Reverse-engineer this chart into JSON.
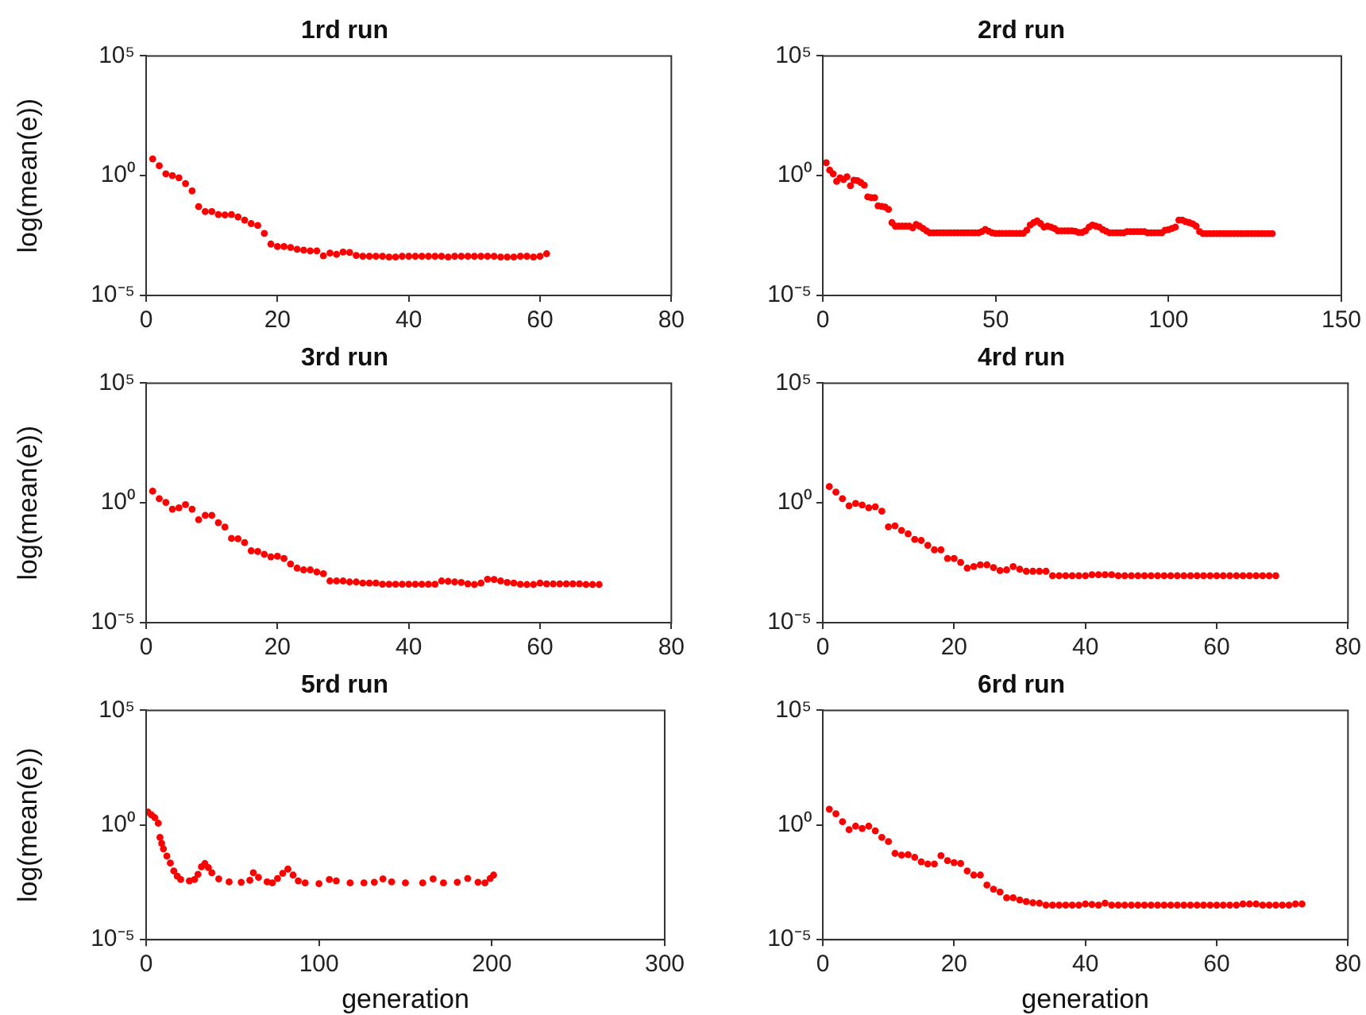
{
  "chart_data": [
    {
      "type": "scatter",
      "title": "1rd run",
      "ylabel": "log(mean(e))",
      "color": "#ff0000",
      "marker": "circle",
      "log": "y",
      "xlim": [
        0,
        80
      ],
      "xticks": [
        0,
        20,
        40,
        60,
        80
      ],
      "ylim": [
        1e-05,
        100000
      ],
      "yticks": [
        {
          "value": 1e-05,
          "label": "10⁻⁵"
        },
        {
          "value": 1,
          "label": "10⁰"
        },
        {
          "value": 100000,
          "label": "10⁵"
        }
      ],
      "x": [
        1,
        2,
        3,
        4,
        5,
        6,
        7,
        8,
        9,
        10,
        11,
        12,
        13,
        14,
        15,
        16,
        17,
        18,
        19,
        20,
        21,
        22,
        23,
        24,
        25,
        26,
        27,
        28,
        29,
        30,
        31,
        32,
        33,
        34,
        35,
        36,
        37,
        38,
        39,
        40,
        41,
        42,
        43,
        44,
        45,
        46,
        47,
        48,
        49,
        50,
        51,
        52,
        53,
        54,
        55,
        56,
        57,
        58,
        59,
        60,
        61
      ],
      "values": [
        5.0,
        2.6,
        1.2,
        1.0,
        0.81,
        0.47,
        0.23,
        0.051,
        0.032,
        0.032,
        0.024,
        0.023,
        0.024,
        0.019,
        0.014,
        0.01,
        0.0083,
        0.0039,
        0.0014,
        0.0011,
        0.0011,
        0.001,
        0.00085,
        0.00078,
        0.00072,
        0.00072,
        0.00045,
        0.00059,
        0.00052,
        0.00065,
        0.00062,
        0.00047,
        0.00043,
        0.00043,
        0.00043,
        0.00043,
        0.0004,
        0.0004,
        0.00043,
        0.00043,
        0.00043,
        0.00043,
        0.00043,
        0.00043,
        0.00043,
        0.0004,
        0.00043,
        0.00043,
        0.00043,
        0.00043,
        0.00043,
        0.00043,
        0.00043,
        0.0004,
        0.0004,
        0.0004,
        0.00043,
        0.00043,
        0.0004,
        0.00043,
        0.00055
      ]
    },
    {
      "type": "scatter",
      "title": "2rd run",
      "color": "#ff0000",
      "marker": "circle",
      "log": "y",
      "xlim": [
        0,
        150
      ],
      "xticks": [
        0,
        50,
        100,
        150
      ],
      "ylim": [
        1e-05,
        100000
      ],
      "yticks": [
        {
          "value": 1e-05,
          "label": "10⁻⁵"
        },
        {
          "value": 1,
          "label": "10⁰"
        },
        {
          "value": 100000,
          "label": "10⁵"
        }
      ],
      "x": [
        1,
        2,
        3,
        4,
        5,
        6,
        7,
        8,
        9,
        10,
        11,
        12,
        13,
        14,
        15,
        16,
        17,
        18,
        19,
        20,
        21,
        22,
        23,
        24,
        25,
        26,
        27,
        28,
        29,
        30,
        31,
        32,
        33,
        34,
        35,
        36,
        37,
        38,
        39,
        40,
        41,
        42,
        43,
        44,
        45,
        46,
        47,
        48,
        49,
        50,
        51,
        52,
        53,
        54,
        55,
        56,
        57,
        58,
        59,
        60,
        61,
        62,
        63,
        64,
        65,
        66,
        67,
        68,
        69,
        70,
        71,
        72,
        73,
        74,
        75,
        76,
        77,
        78,
        79,
        80,
        81,
        82,
        83,
        84,
        85,
        86,
        87,
        88,
        89,
        90,
        91,
        92,
        93,
        94,
        95,
        96,
        97,
        98,
        99,
        100,
        101,
        102,
        103,
        104,
        105,
        106,
        107,
        108,
        109,
        110,
        111,
        112,
        113,
        114,
        115,
        116,
        117,
        118,
        119,
        120,
        121,
        122,
        123,
        124,
        125,
        126,
        127,
        128,
        129,
        130
      ],
      "values": [
        3.5,
        1.7,
        1.2,
        0.58,
        0.81,
        0.69,
        0.9,
        0.38,
        0.65,
        0.62,
        0.52,
        0.4,
        0.13,
        0.12,
        0.12,
        0.055,
        0.052,
        0.049,
        0.039,
        0.011,
        0.0078,
        0.0078,
        0.0078,
        0.0078,
        0.0078,
        0.0066,
        0.0092,
        0.0078,
        0.0063,
        0.005,
        0.0041,
        0.0041,
        0.0041,
        0.0041,
        0.0041,
        0.0041,
        0.0041,
        0.0041,
        0.0041,
        0.0041,
        0.0041,
        0.0041,
        0.0041,
        0.0041,
        0.0041,
        0.0046,
        0.0057,
        0.0048,
        0.0041,
        0.0039,
        0.0039,
        0.0039,
        0.0039,
        0.0039,
        0.0039,
        0.0039,
        0.0039,
        0.0039,
        0.0053,
        0.0087,
        0.011,
        0.013,
        0.01,
        0.0071,
        0.0078,
        0.0071,
        0.0063,
        0.005,
        0.005,
        0.005,
        0.005,
        0.005,
        0.0048,
        0.0043,
        0.0043,
        0.005,
        0.0071,
        0.0087,
        0.0078,
        0.0071,
        0.0056,
        0.0048,
        0.0041,
        0.0041,
        0.0041,
        0.0041,
        0.0041,
        0.0046,
        0.0046,
        0.0046,
        0.0046,
        0.0046,
        0.0046,
        0.0041,
        0.0041,
        0.0041,
        0.0041,
        0.0041,
        0.0053,
        0.0056,
        0.0063,
        0.0071,
        0.014,
        0.014,
        0.012,
        0.011,
        0.0097,
        0.0078,
        0.0046,
        0.0038,
        0.0038,
        0.0038,
        0.0038,
        0.0038,
        0.0038,
        0.0038,
        0.0038,
        0.0038,
        0.0038,
        0.0038,
        0.0038,
        0.0038,
        0.0038,
        0.0038,
        0.0038,
        0.0038,
        0.0038,
        0.0038,
        0.0038,
        0.0038
      ]
    },
    {
      "type": "scatter",
      "title": "3rd run",
      "ylabel": "log(mean(e))",
      "color": "#ff0000",
      "marker": "circle",
      "log": "y",
      "xlim": [
        0,
        80
      ],
      "xticks": [
        0,
        20,
        40,
        60,
        80
      ],
      "ylim": [
        1e-05,
        100000
      ],
      "yticks": [
        {
          "value": 1e-05,
          "label": "10⁻⁵"
        },
        {
          "value": 1,
          "label": "10⁰"
        },
        {
          "value": 100000,
          "label": "10⁵"
        }
      ],
      "x": [
        1,
        2,
        3,
        4,
        5,
        6,
        7,
        8,
        9,
        10,
        11,
        12,
        13,
        14,
        15,
        16,
        17,
        18,
        19,
        20,
        21,
        22,
        23,
        24,
        25,
        26,
        27,
        28,
        29,
        30,
        31,
        32,
        33,
        34,
        35,
        36,
        37,
        38,
        39,
        40,
        41,
        42,
        43,
        44,
        45,
        46,
        47,
        48,
        49,
        50,
        51,
        52,
        53,
        54,
        55,
        56,
        57,
        58,
        59,
        60,
        61,
        62,
        63,
        64,
        65,
        66,
        67,
        68,
        69
      ],
      "values": [
        3.1,
        1.5,
        1.05,
        0.55,
        0.62,
        0.85,
        0.55,
        0.2,
        0.3,
        0.3,
        0.15,
        0.098,
        0.033,
        0.032,
        0.022,
        0.01,
        0.0093,
        0.0071,
        0.0056,
        0.0059,
        0.0048,
        0.0028,
        0.0019,
        0.0016,
        0.0016,
        0.0013,
        0.0011,
        0.00055,
        0.00055,
        0.00055,
        0.0005,
        0.0005,
        0.00045,
        0.00045,
        0.00045,
        0.0004,
        0.0004,
        0.0004,
        0.0004,
        0.0004,
        0.0004,
        0.0004,
        0.0004,
        0.0004,
        0.00055,
        0.00053,
        0.0005,
        0.00048,
        0.00042,
        0.00039,
        0.00045,
        0.00065,
        0.00063,
        0.00055,
        0.00048,
        0.00045,
        0.0004,
        0.00039,
        0.00039,
        0.00045,
        0.00042,
        0.00042,
        0.00042,
        0.00042,
        0.00042,
        0.00042,
        0.00039,
        0.00039,
        0.00039
      ]
    },
    {
      "type": "scatter",
      "title": "4rd run",
      "color": "#ff0000",
      "marker": "circle",
      "log": "y",
      "xlim": [
        0,
        80
      ],
      "xticks": [
        0,
        20,
        40,
        60,
        80
      ],
      "ylim": [
        1e-05,
        100000
      ],
      "yticks": [
        {
          "value": 1e-05,
          "label": "10⁻⁵"
        },
        {
          "value": 1,
          "label": "10⁰"
        },
        {
          "value": 100000,
          "label": "10⁵"
        }
      ],
      "x": [
        1,
        2,
        3,
        4,
        5,
        6,
        7,
        8,
        9,
        10,
        11,
        12,
        13,
        14,
        15,
        16,
        17,
        18,
        19,
        20,
        21,
        22,
        23,
        24,
        25,
        26,
        27,
        28,
        29,
        30,
        31,
        32,
        33,
        34,
        35,
        36,
        37,
        38,
        39,
        40,
        41,
        42,
        43,
        44,
        45,
        46,
        47,
        48,
        49,
        50,
        51,
        52,
        53,
        54,
        55,
        56,
        57,
        58,
        59,
        60,
        61,
        62,
        63,
        64,
        65,
        66,
        67,
        68,
        69
      ],
      "values": [
        4.8,
        2.8,
        1.5,
        0.76,
        0.95,
        0.81,
        0.62,
        0.69,
        0.45,
        0.1,
        0.11,
        0.071,
        0.051,
        0.03,
        0.027,
        0.017,
        0.011,
        0.011,
        0.0048,
        0.0048,
        0.0033,
        0.0019,
        0.0022,
        0.0026,
        0.0026,
        0.002,
        0.0015,
        0.0016,
        0.0022,
        0.0017,
        0.0014,
        0.0014,
        0.0014,
        0.0014,
        0.00091,
        0.00091,
        0.00091,
        0.00091,
        0.00091,
        0.00091,
        0.001,
        0.001,
        0.001,
        0.001,
        0.00091,
        0.00091,
        0.00091,
        0.00091,
        0.00091,
        0.00091,
        0.00091,
        0.00091,
        0.00091,
        0.00091,
        0.00091,
        0.00091,
        0.00091,
        0.00091,
        0.00091,
        0.00091,
        0.00091,
        0.00091,
        0.00091,
        0.00091,
        0.00091,
        0.00091,
        0.00091,
        0.00091,
        0.00091
      ]
    },
    {
      "type": "scatter",
      "title": "5rd run",
      "ylabel": "log(mean(e))",
      "xlabel": "generation",
      "color": "#ff0000",
      "marker": "circle",
      "log": "y",
      "xlim": [
        0,
        300
      ],
      "xticks": [
        0,
        100,
        200,
        300
      ],
      "ylim": [
        1e-05,
        100000
      ],
      "yticks": [
        {
          "value": 1e-05,
          "label": "10⁻⁵"
        },
        {
          "value": 1,
          "label": "10⁰"
        },
        {
          "value": 100000,
          "label": "10⁵"
        }
      ],
      "x": [
        1,
        3,
        5,
        7,
        8,
        9,
        10,
        12,
        14,
        16,
        18,
        20,
        25,
        28,
        30,
        32,
        34,
        36,
        38,
        42,
        48,
        55,
        60,
        62,
        65,
        70,
        73,
        76,
        79,
        82,
        85,
        88,
        92,
        100,
        106,
        110,
        118,
        126,
        132,
        137,
        142,
        150,
        160,
        166,
        172,
        180,
        186,
        192,
        196,
        199,
        201
      ],
      "values": [
        3.7,
        2.8,
        2.1,
        1.2,
        0.29,
        0.16,
        0.091,
        0.044,
        0.022,
        0.01,
        0.0059,
        0.0042,
        0.0037,
        0.0042,
        0.0071,
        0.015,
        0.021,
        0.014,
        0.0083,
        0.0045,
        0.0033,
        0.0032,
        0.0039,
        0.0083,
        0.0052,
        0.0033,
        0.003,
        0.0047,
        0.0078,
        0.012,
        0.0066,
        0.0037,
        0.003,
        0.0028,
        0.0042,
        0.0037,
        0.003,
        0.003,
        0.0032,
        0.0045,
        0.0033,
        0.003,
        0.003,
        0.0045,
        0.003,
        0.0032,
        0.0047,
        0.0032,
        0.003,
        0.0047,
        0.0066
      ]
    },
    {
      "type": "scatter",
      "title": "6rd run",
      "xlabel": "generation",
      "color": "#ff0000",
      "marker": "circle",
      "log": "y",
      "xlim": [
        0,
        80
      ],
      "xticks": [
        0,
        20,
        40,
        60,
        80
      ],
      "ylim": [
        1e-05,
        100000
      ],
      "yticks": [
        {
          "value": 1e-05,
          "label": "10⁻⁵"
        },
        {
          "value": 1,
          "label": "10⁰"
        },
        {
          "value": 100000,
          "label": "10⁵"
        }
      ],
      "x": [
        1,
        2,
        3,
        4,
        5,
        6,
        7,
        8,
        9,
        10,
        11,
        12,
        13,
        14,
        15,
        16,
        17,
        18,
        19,
        20,
        21,
        22,
        23,
        24,
        25,
        26,
        27,
        28,
        29,
        30,
        31,
        32,
        33,
        34,
        35,
        36,
        37,
        38,
        39,
        40,
        41,
        42,
        43,
        44,
        45,
        46,
        47,
        48,
        49,
        50,
        51,
        52,
        53,
        54,
        55,
        56,
        57,
        58,
        59,
        60,
        61,
        62,
        63,
        64,
        65,
        66,
        67,
        68,
        69,
        70,
        71,
        72,
        73
      ],
      "values": [
        4.9,
        3.1,
        1.4,
        0.63,
        0.89,
        0.71,
        0.89,
        0.56,
        0.29,
        0.19,
        0.058,
        0.049,
        0.051,
        0.039,
        0.025,
        0.02,
        0.02,
        0.046,
        0.028,
        0.023,
        0.021,
        0.01,
        0.0066,
        0.0066,
        0.0024,
        0.0016,
        0.0012,
        0.00068,
        0.00068,
        0.00054,
        0.00046,
        0.00041,
        0.00039,
        0.00032,
        0.00032,
        0.00032,
        0.00032,
        0.00032,
        0.00032,
        0.00036,
        0.00034,
        0.00032,
        0.00039,
        0.00032,
        0.00032,
        0.00032,
        0.00032,
        0.00032,
        0.00032,
        0.00032,
        0.00032,
        0.00032,
        0.00032,
        0.00032,
        0.00032,
        0.00032,
        0.00032,
        0.00032,
        0.00032,
        0.00032,
        0.00032,
        0.00032,
        0.00032,
        0.00036,
        0.00036,
        0.00036,
        0.00032,
        0.00032,
        0.00032,
        0.00032,
        0.00032,
        0.00036,
        0.00036
      ]
    }
  ]
}
